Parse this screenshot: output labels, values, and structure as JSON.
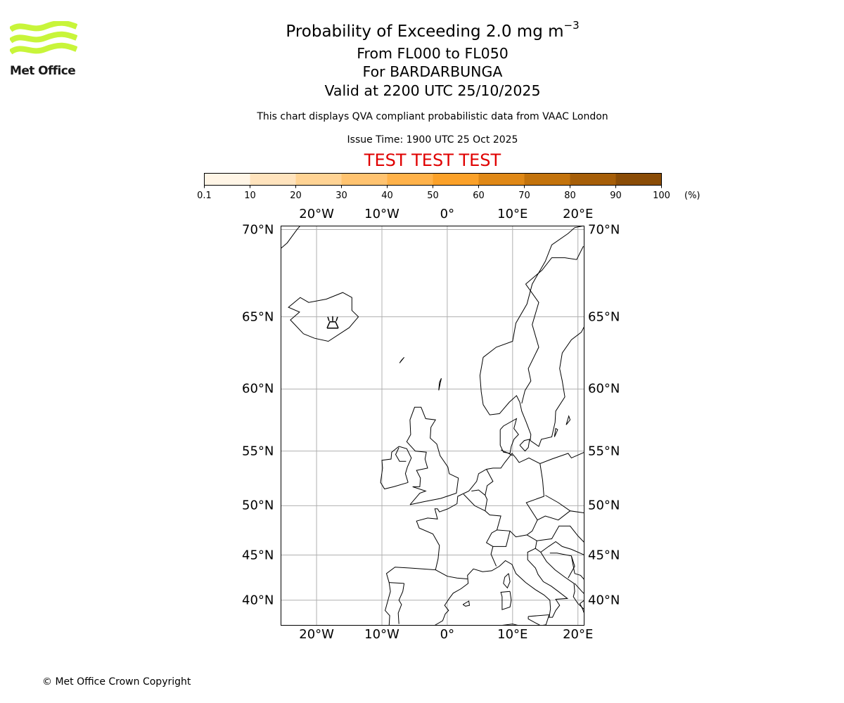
{
  "logo": {
    "text": "Met Office",
    "stripe_color": "#c8f53a"
  },
  "title": {
    "main": "Probability of Exceeding 2.0 mg m",
    "main_superscript": "−3",
    "flight_levels": "From FL000 to FL050",
    "volcano": "For BARDARBUNGA",
    "valid": "Valid at 2200 UTC 25/10/2025",
    "description": "This chart displays QVA compliant probabilistic data from VAAC London",
    "issue_time": "Issue Time: 1900 UTC 25 Oct 2025",
    "test_banner": "TEST TEST TEST",
    "test_color": "#e00000"
  },
  "colorbar": {
    "ticks": [
      "0.1",
      "10",
      "20",
      "30",
      "40",
      "50",
      "60",
      "70",
      "80",
      "90",
      "100"
    ],
    "unit": "(%)",
    "colors": [
      "#fff5e6",
      "#ffe3bd",
      "#ffd394",
      "#ffc370",
      "#ffb24a",
      "#fba129",
      "#df8816",
      "#c3730c",
      "#a65e08",
      "#8a4c06",
      "#653a05"
    ]
  },
  "map": {
    "projection": "mercator",
    "lon_range": [
      -25.5,
      21
    ],
    "lat_range": [
      37,
      70.2
    ],
    "lon_ticks": [
      "20°W",
      "10°W",
      "0°",
      "10°E",
      "20°E"
    ],
    "lat_ticks": [
      "70°N",
      "65°N",
      "60°N",
      "55°N",
      "50°N",
      "45°N",
      "40°N"
    ],
    "grid": true,
    "volcano": {
      "name": "BARDARBUNGA",
      "lat": 64.64,
      "lon": -17.53,
      "icon": "volcano-icon"
    }
  },
  "footer": {
    "copyright": "© Met Office Crown Copyright"
  }
}
